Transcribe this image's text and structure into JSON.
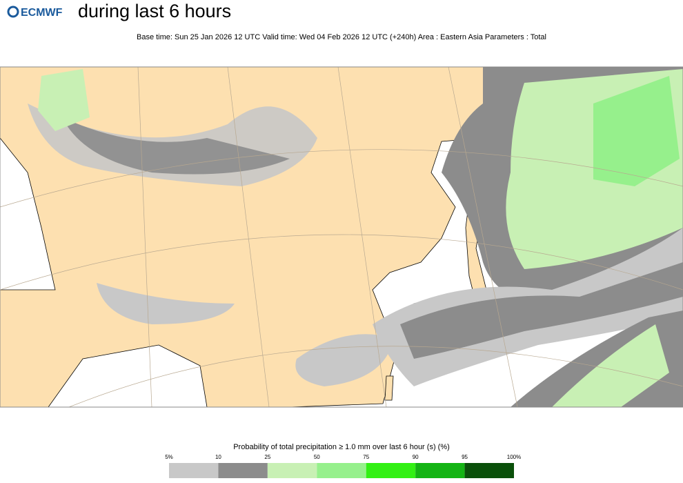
{
  "header": {
    "logo": "ECMWF",
    "title": "during last 6 hours",
    "subtitle": "Base time: Sun 25 Jan 2026 12 UTC Valid time: Wed 04 Feb 2026 12 UTC (+240h) Area : Eastern Asia Parameters : Total"
  },
  "legend": {
    "title": "Probability of total precipitation ≥ 1.0 mm over last 6 hour (s) (%)",
    "ticks": [
      {
        "value": 5,
        "label": "5%"
      },
      10,
      25,
      50,
      75,
      90,
      95,
      {
        "value": 100,
        "label": "100%"
      }
    ],
    "colors": [
      "#c8c8c8",
      "#8c8c8c",
      "#c8f0b4",
      "#96f08c",
      "#32f014",
      "#14b414",
      "#0a500a"
    ]
  }
}
